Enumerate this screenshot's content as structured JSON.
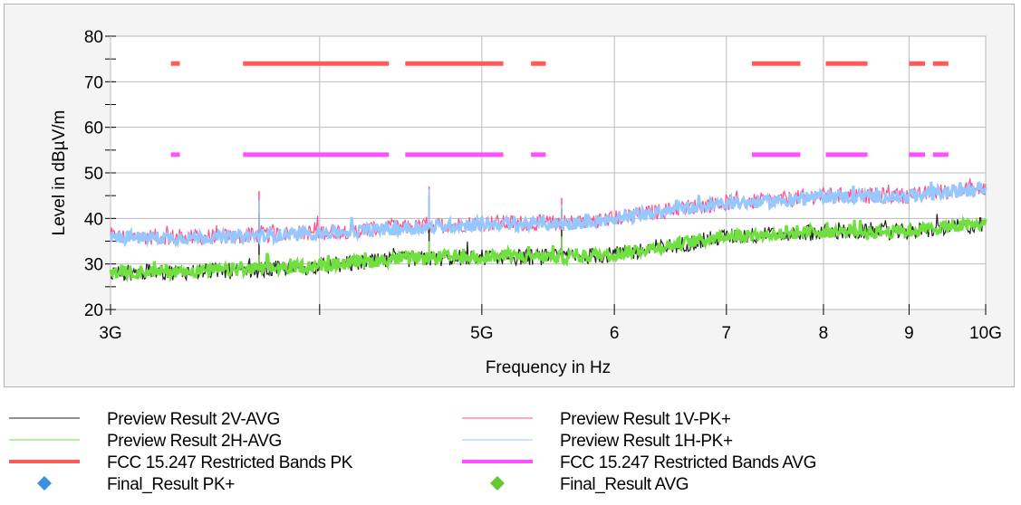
{
  "chart_data": {
    "type": "line",
    "xlabel": "Frequency in Hz",
    "ylabel": "Level in dBµV/m",
    "x_scale": "log",
    "xlim": [
      3000000000,
      10000000000
    ],
    "ylim": [
      20,
      80
    ],
    "grid": true,
    "x_ticks": [
      {
        "value": 3000000000,
        "label": "3G"
      },
      {
        "value": 4000000000,
        "label": ""
      },
      {
        "value": 5000000000,
        "label": "5G"
      },
      {
        "value": 6000000000,
        "label": "6"
      },
      {
        "value": 7000000000,
        "label": "7"
      },
      {
        "value": 8000000000,
        "label": "8"
      },
      {
        "value": 9000000000,
        "label": "9"
      },
      {
        "value": 10000000000,
        "label": "10G"
      }
    ],
    "y_ticks": [
      {
        "value": 20,
        "label": "20"
      },
      {
        "value": 30,
        "label": "30"
      },
      {
        "value": 40,
        "label": "40"
      },
      {
        "value": 50,
        "label": "50"
      },
      {
        "value": 60,
        "label": "60"
      },
      {
        "value": 70,
        "label": "70"
      },
      {
        "value": 80,
        "label": "80"
      }
    ],
    "series": [
      {
        "name": "Preview Result 2V-AVG",
        "kind": "trace",
        "color": "#222222",
        "points": [
          [
            3000000000,
            28
          ],
          [
            3600000000,
            28.5
          ],
          [
            4000000000,
            29.5
          ],
          [
            4500000000,
            31
          ],
          [
            5000000000,
            31.5
          ],
          [
            5600000000,
            31.5
          ],
          [
            6000000000,
            32
          ],
          [
            6500000000,
            34
          ],
          [
            7000000000,
            36
          ],
          [
            7500000000,
            36.5
          ],
          [
            8000000000,
            37
          ],
          [
            8500000000,
            37
          ],
          [
            9000000000,
            37
          ],
          [
            9500000000,
            38
          ],
          [
            10000000000,
            38.5
          ]
        ],
        "spikes": [
          [
            3680000000,
            41
          ],
          [
            4650000000,
            45
          ],
          [
            5580000000,
            42
          ]
        ]
      },
      {
        "name": "Preview Result 2H-AVG",
        "kind": "trace",
        "color": "#70e040",
        "points": [
          [
            3000000000,
            28.2
          ],
          [
            3600000000,
            28.7
          ],
          [
            4000000000,
            29.7
          ],
          [
            4500000000,
            31.2
          ],
          [
            5000000000,
            31.7
          ],
          [
            5600000000,
            31.5
          ],
          [
            6000000000,
            32.2
          ],
          [
            6500000000,
            34.2
          ],
          [
            7000000000,
            36.2
          ],
          [
            7500000000,
            36.5
          ],
          [
            8000000000,
            37.2
          ],
          [
            8500000000,
            37
          ],
          [
            9000000000,
            37.2
          ],
          [
            9500000000,
            38.2
          ],
          [
            10000000000,
            38.7
          ]
        ],
        "spikes": [
          [
            3680000000,
            32
          ],
          [
            4650000000,
            35
          ],
          [
            5580000000,
            36
          ]
        ]
      },
      {
        "name": "Preview Result 1V-PK+",
        "kind": "trace",
        "color": "#ff4f8a",
        "points": [
          [
            3000000000,
            36
          ],
          [
            3500000000,
            36
          ],
          [
            4000000000,
            37
          ],
          [
            4500000000,
            38
          ],
          [
            5000000000,
            39
          ],
          [
            5600000000,
            39
          ],
          [
            6000000000,
            40
          ],
          [
            6500000000,
            42
          ],
          [
            7000000000,
            43.5
          ],
          [
            7500000000,
            44
          ],
          [
            8000000000,
            45
          ],
          [
            8500000000,
            45
          ],
          [
            9000000000,
            45
          ],
          [
            9500000000,
            46
          ],
          [
            10000000000,
            46.5
          ]
        ],
        "spikes": [
          [
            3680000000,
            46
          ],
          [
            4650000000,
            47
          ],
          [
            5580000000,
            44.5
          ]
        ]
      },
      {
        "name": "Preview Result 1H-PK+",
        "kind": "trace",
        "color": "#96c8ff",
        "points": [
          [
            3000000000,
            35.8
          ],
          [
            3500000000,
            35.8
          ],
          [
            4000000000,
            36.8
          ],
          [
            4500000000,
            37.8
          ],
          [
            5000000000,
            38.8
          ],
          [
            5600000000,
            38.8
          ],
          [
            6000000000,
            39.8
          ],
          [
            6500000000,
            41.8
          ],
          [
            7000000000,
            43.3
          ],
          [
            7500000000,
            43.8
          ],
          [
            8000000000,
            44.8
          ],
          [
            8500000000,
            44.8
          ],
          [
            9000000000,
            44.8
          ],
          [
            9500000000,
            45.8
          ],
          [
            10000000000,
            46.3
          ]
        ],
        "spikes": [
          [
            3680000000,
            44
          ],
          [
            4650000000,
            46.5
          ],
          [
            5580000000,
            43
          ]
        ]
      },
      {
        "name": "FCC 15.247 Restricted Bands PK",
        "kind": "band",
        "color": "#ff5a5a",
        "level": 74,
        "bands": [
          [
            3260000000,
            3300000000
          ],
          [
            3600000000,
            4400000000
          ],
          [
            4500000000,
            5150000000
          ],
          [
            5350000000,
            5460000000
          ],
          [
            7250000000,
            7750000000
          ],
          [
            8025000000,
            8500000000
          ],
          [
            9000000000,
            9200000000
          ],
          [
            9300000000,
            9500000000
          ]
        ]
      },
      {
        "name": "FCC 15.247 Restricted Bands AVG",
        "kind": "band",
        "color": "#ff50ff",
        "level": 54,
        "bands": [
          [
            3260000000,
            3300000000
          ],
          [
            3600000000,
            4400000000
          ],
          [
            4500000000,
            5150000000
          ],
          [
            5350000000,
            5460000000
          ],
          [
            7250000000,
            7750000000
          ],
          [
            8025000000,
            8500000000
          ],
          [
            9000000000,
            9200000000
          ],
          [
            9300000000,
            9500000000
          ]
        ]
      },
      {
        "name": "Final_Result PK+",
        "kind": "marker",
        "color": "#3a8fe0",
        "points": []
      },
      {
        "name": "Final_Result AVG",
        "kind": "marker",
        "color": "#66c933",
        "points": []
      }
    ]
  },
  "legend": [
    {
      "label": "Preview Result 2V-AVG"
    },
    {
      "label": "Preview Result 1V-PK+"
    },
    {
      "label": "Preview Result 2H-AVG"
    },
    {
      "label": "Preview Result 1H-PK+"
    },
    {
      "label": "FCC 15.247 Restricted Bands PK"
    },
    {
      "label": "FCC 15.247 Restricted Bands AVG"
    },
    {
      "label": "Final_Result PK+"
    },
    {
      "label": "Final_Result AVG"
    }
  ]
}
